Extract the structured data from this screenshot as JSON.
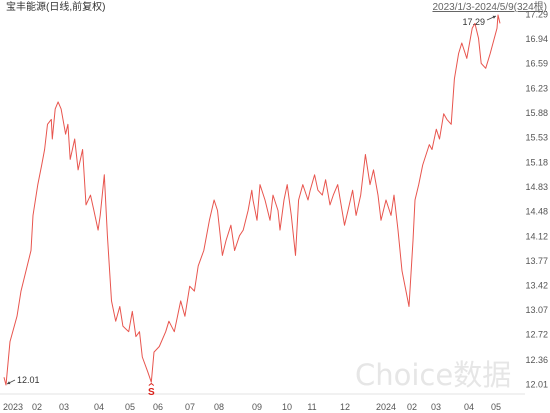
{
  "watermark": "Choice数据",
  "colors": {
    "line": "#e8554e",
    "marker": "#d9211a",
    "title_text": "#333333",
    "axis_text": "#555555",
    "annotation": "#444444",
    "watermark": "#e6e6e6"
  },
  "chart_data": {
    "type": "line",
    "title": "宝丰能源(日线,前复权)",
    "range_label": "2023/1/3-2024/5/9(324根)",
    "grid": false,
    "ylim": [
      12.01,
      17.29
    ],
    "y_ticks": [
      17.29,
      16.94,
      16.59,
      16.23,
      15.88,
      15.53,
      15.18,
      14.83,
      14.48,
      14.12,
      13.77,
      13.42,
      13.07,
      12.72,
      12.36,
      12.01
    ],
    "x_ticks": [
      {
        "label": "2023",
        "date": "2023-01-01"
      },
      {
        "label": "02",
        "date": "2023-02-01"
      },
      {
        "label": "03",
        "date": "2023-03-01"
      },
      {
        "label": "04",
        "date": "2023-04-01"
      },
      {
        "label": "05",
        "date": "2023-05-01"
      },
      {
        "label": "06",
        "date": "2023-06-01"
      },
      {
        "label": "07",
        "date": "2023-07-01"
      },
      {
        "label": "08",
        "date": "2023-08-01"
      },
      {
        "label": "09",
        "date": "2023-09-01"
      },
      {
        "label": "10",
        "date": "2023-10-01"
      },
      {
        "label": "11",
        "date": "2023-11-01"
      },
      {
        "label": "12",
        "date": "2023-12-01"
      },
      {
        "label": "2024",
        "date": "2024-01-01"
      },
      {
        "label": "02",
        "date": "2024-02-01"
      },
      {
        "label": "03",
        "date": "2024-03-01"
      },
      {
        "label": "04",
        "date": "2024-04-01"
      },
      {
        "label": "05",
        "date": "2024-05-01"
      }
    ],
    "x": [
      "2023-01-03",
      "2023-01-05",
      "2023-01-09",
      "2023-01-16",
      "2023-01-20",
      "2023-01-30",
      "2023-02-01",
      "2023-02-06",
      "2023-02-10",
      "2023-02-13",
      "2023-02-16",
      "2023-02-20",
      "2023-02-21",
      "2023-02-24",
      "2023-02-27",
      "2023-03-02",
      "2023-03-06",
      "2023-03-08",
      "2023-03-10",
      "2023-03-14",
      "2023-03-17",
      "2023-03-21",
      "2023-03-24",
      "2023-03-28",
      "2023-03-31",
      "2023-04-04",
      "2023-04-06",
      "2023-04-10",
      "2023-04-13",
      "2023-04-17",
      "2023-04-21",
      "2023-04-25",
      "2023-04-28",
      "2023-05-04",
      "2023-05-08",
      "2023-05-12",
      "2023-05-16",
      "2023-05-19",
      "2023-05-25",
      "2023-05-29",
      "2023-06-01",
      "2023-06-06",
      "2023-06-12",
      "2023-06-15",
      "2023-06-20",
      "2023-06-26",
      "2023-06-30",
      "2023-07-05",
      "2023-07-10",
      "2023-07-14",
      "2023-07-20",
      "2023-07-26",
      "2023-07-31",
      "2023-08-03",
      "2023-08-07",
      "2023-08-10",
      "2023-08-14",
      "2023-08-17",
      "2023-08-21",
      "2023-08-24",
      "2023-08-28",
      "2023-08-31",
      "2023-09-01",
      "2023-09-05",
      "2023-09-08",
      "2023-09-13",
      "2023-09-18",
      "2023-09-21",
      "2023-09-26",
      "2023-09-28",
      "2023-10-09",
      "2023-10-12",
      "2023-10-16",
      "2023-10-20",
      "2023-10-23",
      "2023-10-27",
      "2023-11-01",
      "2023-11-03",
      "2023-11-07",
      "2023-11-10",
      "2023-11-14",
      "2023-11-17",
      "2023-11-21",
      "2023-11-24",
      "2023-11-28",
      "2023-12-04",
      "2023-12-07",
      "2023-12-11",
      "2023-12-14",
      "2023-12-18",
      "2023-12-22",
      "2023-12-26",
      "2023-12-29",
      "2024-01-02",
      "2024-01-05",
      "2024-01-10",
      "2024-01-15",
      "2024-01-18",
      "2024-01-22",
      "2024-01-26",
      "2024-01-30",
      "2024-02-02",
      "2024-02-06",
      "2024-02-08",
      "2024-02-20",
      "2024-02-23",
      "2024-02-28",
      "2024-03-01",
      "2024-03-05",
      "2024-03-08",
      "2024-03-12",
      "2024-03-15",
      "2024-03-19",
      "2024-03-22",
      "2024-03-26",
      "2024-03-29",
      "2024-04-03",
      "2024-04-09",
      "2024-04-12",
      "2024-04-16",
      "2024-04-19",
      "2024-04-24",
      "2024-04-29",
      "2024-05-06",
      "2024-05-07",
      "2024-05-09"
    ],
    "series": [
      {
        "values": [
          12.12,
          12.01,
          12.63,
          12.99,
          13.35,
          13.93,
          14.43,
          14.87,
          15.15,
          15.37,
          15.73,
          15.8,
          15.52,
          15.95,
          16.05,
          15.95,
          15.59,
          15.73,
          15.23,
          15.52,
          15.08,
          15.37,
          14.58,
          14.72,
          14.5,
          14.22,
          14.43,
          15.01,
          14.14,
          13.21,
          12.92,
          13.13,
          12.85,
          12.77,
          13.06,
          12.7,
          12.77,
          12.41,
          12.2,
          12.05,
          12.48,
          12.56,
          12.77,
          12.92,
          12.77,
          13.21,
          12.99,
          13.42,
          13.35,
          13.71,
          13.93,
          14.36,
          14.65,
          14.5,
          13.86,
          14.07,
          14.29,
          13.93,
          14.14,
          14.22,
          14.5,
          14.79,
          14.65,
          14.36,
          14.87,
          14.65,
          14.36,
          14.72,
          14.5,
          14.22,
          14.65,
          14.87,
          14.43,
          13.86,
          14.65,
          14.87,
          14.65,
          14.79,
          15.01,
          14.79,
          14.72,
          14.94,
          14.58,
          14.72,
          14.87,
          14.29,
          14.5,
          14.79,
          14.43,
          14.72,
          15.3,
          14.87,
          15.08,
          14.72,
          14.36,
          14.65,
          14.43,
          14.72,
          14.22,
          13.64,
          13.35,
          13.13,
          14.07,
          14.65,
          14.87,
          15.15,
          15.44,
          15.37,
          15.66,
          15.52,
          15.88,
          15.8,
          15.73,
          16.38,
          16.74,
          16.89,
          16.67,
          17.1,
          17.17,
          16.96,
          16.6,
          16.53,
          16.74,
          17.1,
          17.29,
          17.17
        ]
      }
    ],
    "annotations": [
      {
        "text": "12.01",
        "date": "2023-01-05",
        "value": 12.01
      },
      {
        "text": "17.29",
        "date": "2024-05-07",
        "value": 17.29
      }
    ],
    "markers": [
      {
        "text": "S",
        "date": "2023-05-29"
      }
    ]
  }
}
